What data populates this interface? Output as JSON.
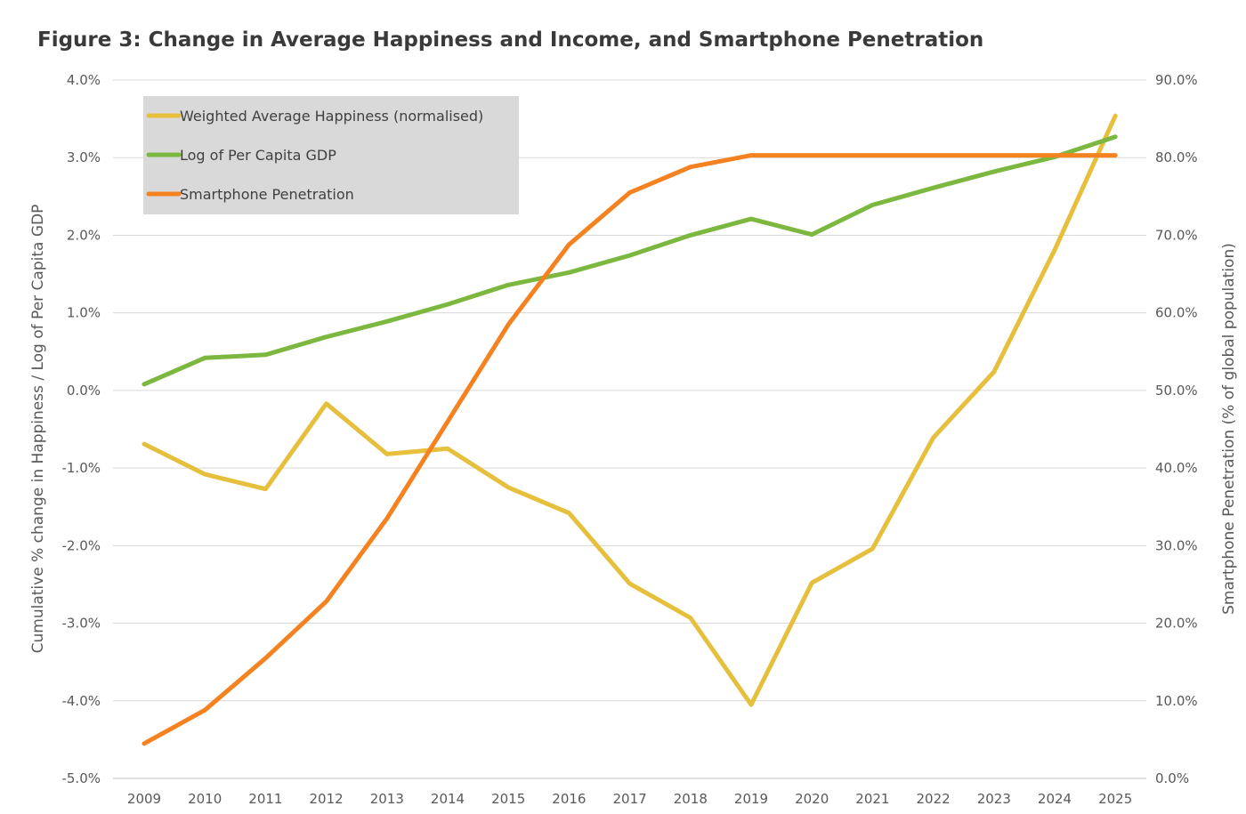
{
  "chart_data": {
    "type": "line",
    "title": "Figure 3: Change in Average Happiness and Income, and Smartphone Penetration",
    "x": [
      "2009",
      "2010",
      "2011",
      "2012",
      "2013",
      "2014",
      "2015",
      "2016",
      "2017",
      "2018",
      "2019",
      "2020",
      "2021",
      "2022",
      "2023",
      "2024",
      "2025"
    ],
    "y_left": {
      "label": "Cumulative % change in Happiness / Log of Per Capita GDP",
      "range": [
        -5.0,
        4.0
      ],
      "ticks": [
        "4.0%",
        "3.0%",
        "2.0%",
        "1.0%",
        "0.0%",
        "-1.0%",
        "-2.0%",
        "-3.0%",
        "-4.0%",
        "-5.0%"
      ]
    },
    "y_right": {
      "label": "Smartphone Penetration (% of global population)",
      "range": [
        0.0,
        90.0
      ],
      "ticks": [
        "90.0%",
        "80.0%",
        "70.0%",
        "60.0%",
        "50.0%",
        "40.0%",
        "30.0%",
        "20.0%",
        "10.0%",
        "0.0%"
      ]
    },
    "grid": true,
    "legend_position": "top-left",
    "series": [
      {
        "name": "Weighted Average Happiness (normalised)",
        "axis": "left",
        "color": "#E6BF3C",
        "values": [
          -0.69,
          -1.08,
          -1.27,
          -0.17,
          -0.82,
          -0.75,
          -1.25,
          -1.58,
          -2.49,
          -2.93,
          -4.05,
          -2.48,
          -2.04,
          -0.61,
          0.24,
          1.81,
          3.54
        ]
      },
      {
        "name": "Log of Per Capita GDP",
        "axis": "left",
        "color": "#7CB83F",
        "values": [
          0.08,
          0.42,
          0.46,
          0.69,
          0.89,
          1.11,
          1.36,
          1.52,
          1.74,
          2.0,
          2.21,
          2.01,
          2.39,
          2.61,
          2.82,
          3.01,
          3.27
        ]
      },
      {
        "name": "Smartphone Penetration",
        "axis": "right",
        "color": "#F58220",
        "values": [
          4.5,
          8.8,
          15.5,
          22.8,
          33.5,
          46.0,
          58.5,
          68.8,
          75.5,
          78.8,
          80.3,
          80.3,
          80.3,
          80.3,
          80.3,
          80.3,
          80.3
        ]
      }
    ]
  }
}
